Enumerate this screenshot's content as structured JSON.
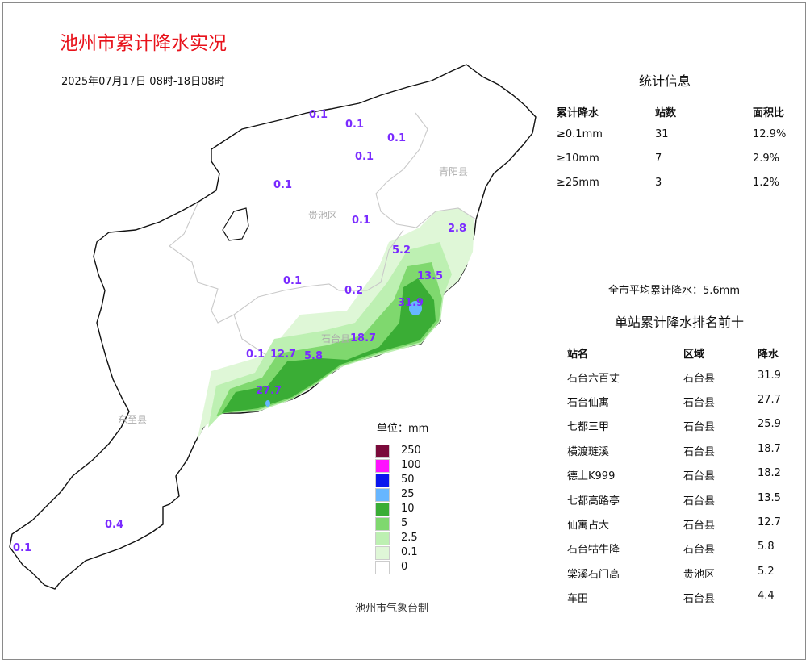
{
  "title": "池州市累计降水实况",
  "time_range": "2025年07月17日 08时-18日08时",
  "map": {
    "district_labels": [
      "青阳县",
      "贵池区",
      "石台县",
      "东至县"
    ],
    "station_values": [
      "0.1",
      "0.1",
      "0.1",
      "0.1",
      "0.1",
      "0.1",
      "2.8",
      "5.2",
      "13.5",
      "0.1",
      "0.2",
      "31.9",
      "18.7",
      "0.1",
      "12.7",
      "5.8",
      "27.7",
      "0.4",
      "0.1"
    ],
    "color_scale": [
      "#ffffff",
      "#dff7d7",
      "#bdf0b2",
      "#7fd86e",
      "#3aad35",
      "#67b6ff",
      "#0a16ee",
      "#ff12ff",
      "#7a0a3a"
    ]
  },
  "statistics": {
    "title": "统计信息",
    "headers": [
      "累计降水",
      "站数",
      "面积比"
    ],
    "rows": [
      [
        "≥0.1mm",
        "31",
        "12.9%"
      ],
      [
        "≥10mm",
        "7",
        "2.9%"
      ],
      [
        "≥25mm",
        "3",
        "1.2%"
      ]
    ]
  },
  "average": "全市平均累计降水：5.6mm",
  "ranking": {
    "title": "单站累计降水排名前十",
    "headers": [
      "站名",
      "区域",
      "降水"
    ],
    "rows": [
      [
        "石台六百丈",
        "石台县",
        "31.9"
      ],
      [
        "石台仙寓",
        "石台县",
        "27.7"
      ],
      [
        "七都三甲",
        "石台县",
        "25.9"
      ],
      [
        "横渡琏溪",
        "石台县",
        "18.7"
      ],
      [
        "德上K999",
        "石台县",
        "18.2"
      ],
      [
        "七都高路亭",
        "石台县",
        "13.5"
      ],
      [
        "仙寓占大",
        "石台县",
        "12.7"
      ],
      [
        "石台牯牛降",
        "石台县",
        "5.8"
      ],
      [
        "棠溪石门高",
        "贵池区",
        "5.2"
      ],
      [
        "车田",
        "石台县",
        "4.4"
      ]
    ]
  },
  "legend": {
    "unit": "单位：mm",
    "items": [
      {
        "label": "250",
        "color": "#7a0a3a"
      },
      {
        "label": "100",
        "color": "#ff12ff"
      },
      {
        "label": "50",
        "color": "#0a16ee"
      },
      {
        "label": "25",
        "color": "#67b6ff"
      },
      {
        "label": "10",
        "color": "#3aad35"
      },
      {
        "label": "5",
        "color": "#7fd86e"
      },
      {
        "label": "2.5",
        "color": "#bdf0b2"
      },
      {
        "label": "0.1",
        "color": "#dff7d7"
      },
      {
        "label": "0",
        "color": "#ffffff"
      }
    ]
  },
  "producer": "池州市气象台制"
}
